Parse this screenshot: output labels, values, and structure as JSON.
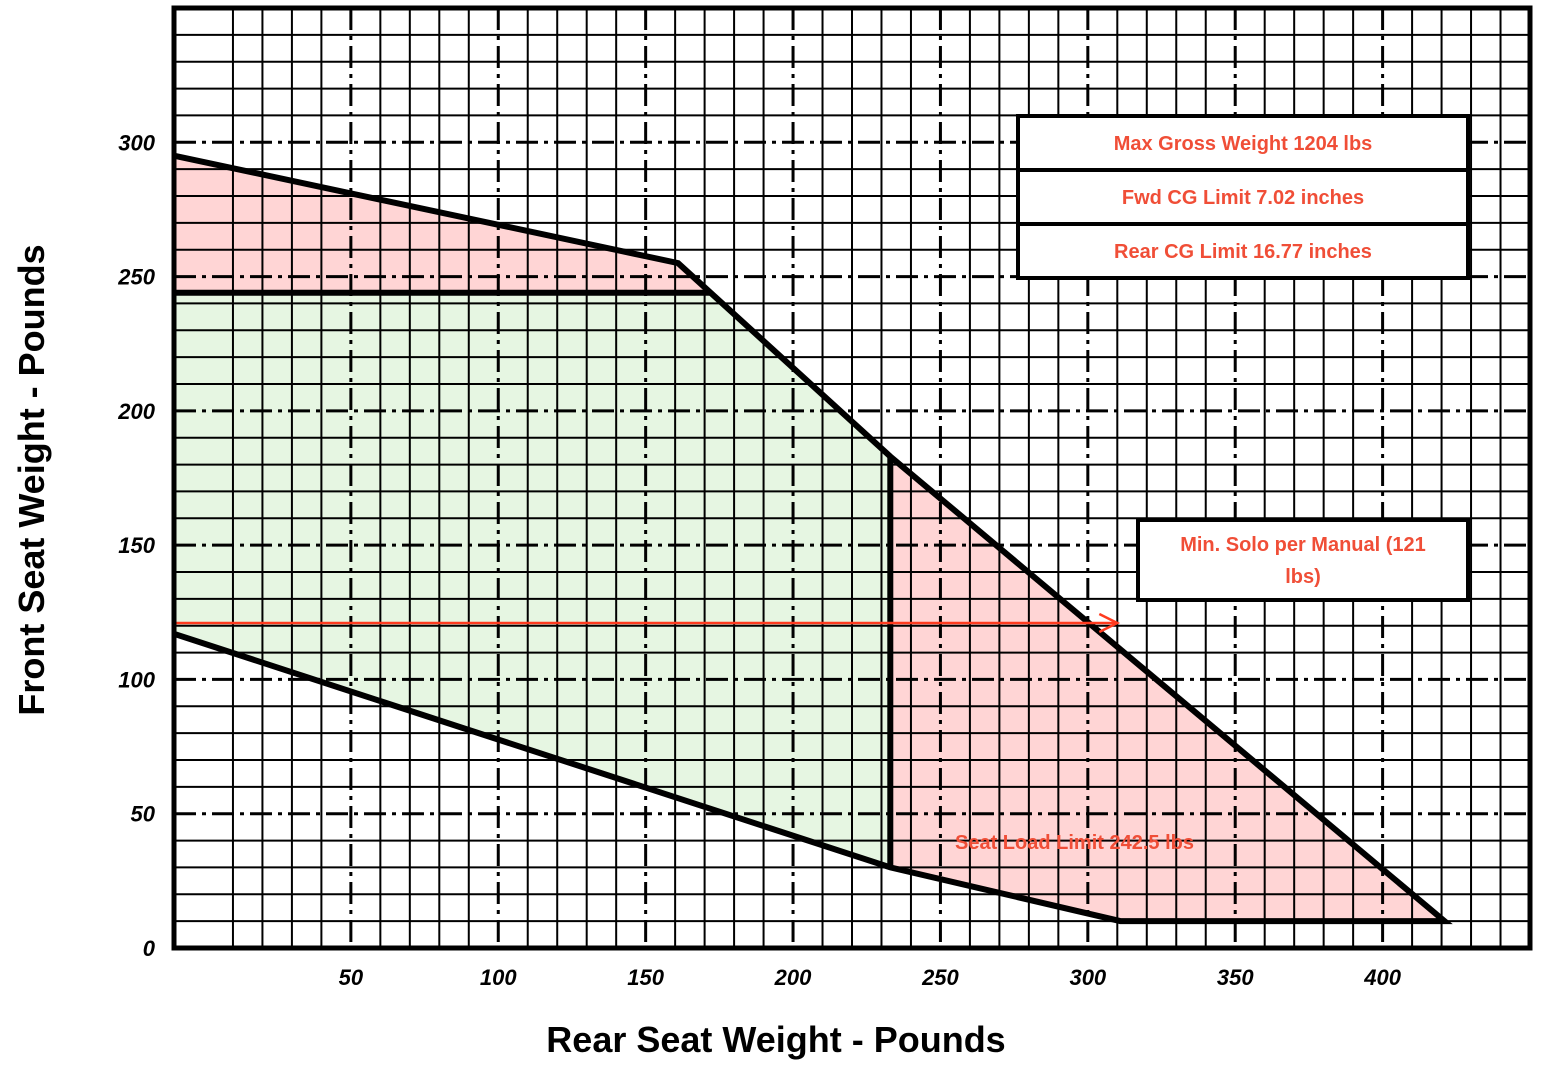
{
  "chart_data": {
    "type": "area",
    "xlabel": "Rear Seat Weight - Pounds",
    "ylabel": "Front Seat Weight - Pounds",
    "xlim": [
      -10,
      450
    ],
    "ylim": [
      0,
      350
    ],
    "x_ticks": [
      50,
      100,
      150,
      200,
      250,
      300,
      350,
      400
    ],
    "x_tick_labels": [
      "50",
      "100",
      "150",
      "200",
      "250",
      "300",
      "350",
      "400"
    ],
    "y_ticks": [
      0,
      50,
      100,
      150,
      200,
      250,
      300
    ],
    "y_tick_labels": [
      "0",
      "50",
      "100",
      "150",
      "200",
      "250",
      "300"
    ],
    "minor_grid_step": 10,
    "major_grid_step": 50,
    "grid": true,
    "colors": {
      "limit_fill": "#ffd5d5",
      "envelope_fill": "#e6f6e2",
      "envelope_edge": "#4f81bd",
      "annotation_text": "#f04e37",
      "solo_line": "#ff3b1f",
      "boundary": "#000000"
    },
    "regions": [
      {
        "role": "upper-limit-area",
        "points": [
          [
            -10,
            295
          ],
          [
            161,
            255
          ],
          [
            172,
            244
          ],
          [
            -10,
            244
          ]
        ]
      },
      {
        "role": "right-limit-area",
        "points": [
          [
            233,
            183
          ],
          [
            233,
            30
          ],
          [
            311,
            10
          ],
          [
            421,
            10
          ],
          [
            233,
            183
          ]
        ]
      },
      {
        "role": "envelope",
        "points": [
          [
            -10,
            244
          ],
          [
            172,
            244
          ],
          [
            233,
            183
          ],
          [
            233,
            30
          ],
          [
            -10,
            117
          ]
        ]
      }
    ],
    "boundary_lines": [
      {
        "points": [
          [
            -10,
            295
          ],
          [
            161,
            255
          ],
          [
            233,
            183
          ],
          [
            421,
            10
          ],
          [
            311,
            10
          ],
          [
            233,
            30
          ],
          [
            -10,
            117
          ]
        ]
      },
      {
        "points": [
          [
            -10,
            244
          ],
          [
            172,
            244
          ]
        ]
      },
      {
        "points": [
          [
            233,
            183
          ],
          [
            233,
            30
          ]
        ]
      }
    ],
    "min_solo_line": {
      "y": 121,
      "x_start": -10,
      "x_end": 310
    },
    "annotations": [
      {
        "text": "Max Gross Weight 1204 lbs",
        "boxed": true
      },
      {
        "text": "Fwd CG Limit 7.02 inches",
        "boxed": true
      },
      {
        "text": "Rear CG Limit 16.77 inches",
        "boxed": true
      },
      {
        "text": "Min. Solo per Manual (121 lbs)",
        "lines": [
          "Min. Solo per Manual (121",
          "lbs)"
        ],
        "boxed": true,
        "x": 310,
        "y": 121
      },
      {
        "text": "Seat Load Limit 242.5 lbs",
        "boxed": false,
        "x": 243,
        "y": 40
      }
    ]
  }
}
